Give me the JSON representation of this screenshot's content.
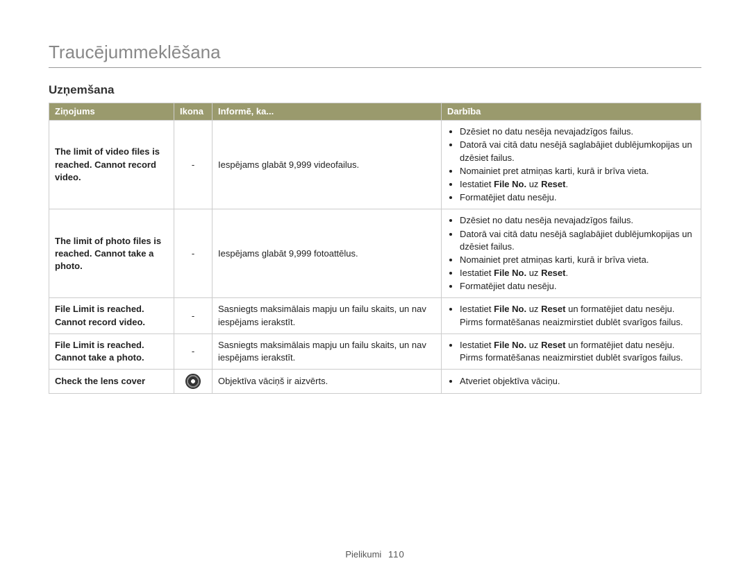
{
  "page": {
    "title": "Traucējummeklēšana",
    "subtitle": "Uzņemšana",
    "footer_label": "Pielikumi",
    "footer_page": "110"
  },
  "table": {
    "headers": {
      "message": "Ziņojums",
      "icon": "Ikona",
      "informs": "Informē, ka...",
      "action": "Darbība"
    },
    "rows": [
      {
        "message": "The limit of video files is reached. Cannot record video.",
        "icon": "-",
        "icon_type": "dash",
        "informs": "Iespējams glabāt 9,999 videofailus.",
        "actions": [
          {
            "text": "Dzēsiet no datu nesēja nevajadzīgos failus."
          },
          {
            "text": "Datorā vai citā datu nesējā saglabājiet dublējumkopijas un dzēsiet failus."
          },
          {
            "text": "Nomainiet pret atmiņas karti, kurā ir brīva vieta."
          },
          {
            "prefix": "Iestatiet ",
            "bold1": "File No.",
            "mid": " uz ",
            "bold2": "Reset",
            "suffix": "."
          },
          {
            "text": "Formatējiet datu nesēju."
          }
        ]
      },
      {
        "message": "The limit of photo files is reached. Cannot take a photo.",
        "icon": "-",
        "icon_type": "dash",
        "informs": "Iespējams glabāt 9,999 fotoattēlus.",
        "actions": [
          {
            "text": "Dzēsiet no datu nesēja nevajadzīgos failus."
          },
          {
            "text": "Datorā vai citā datu nesējā saglabājiet dublējumkopijas un dzēsiet failus."
          },
          {
            "text": "Nomainiet pret atmiņas karti, kurā ir brīva vieta."
          },
          {
            "prefix": "Iestatiet ",
            "bold1": "File No.",
            "mid": " uz ",
            "bold2": "Reset",
            "suffix": "."
          },
          {
            "text": "Formatējiet datu nesēju."
          }
        ]
      },
      {
        "message": "File Limit is reached. Cannot record video.",
        "icon": "-",
        "icon_type": "dash",
        "informs": "Sasniegts maksimālais mapju un failu skaits, un nav iespējams ierakstīt.",
        "actions": [
          {
            "prefix": "Iestatiet ",
            "bold1": "File No.",
            "mid": " uz ",
            "bold2": "Reset",
            "suffix": " un formatējiet datu nesēju.",
            "extra": "Pirms formatēšanas neaizmirstiet dublēt svarīgos failus."
          }
        ]
      },
      {
        "message": "File Limit is reached. Cannot take a photo.",
        "icon": "-",
        "icon_type": "dash",
        "informs": "Sasniegts maksimālais mapju un failu skaits, un nav iespējams ierakstīt.",
        "actions": [
          {
            "prefix": "Iestatiet ",
            "bold1": "File No.",
            "mid": " uz ",
            "bold2": "Reset",
            "suffix": " un formatējiet datu nesēju.",
            "extra": "Pirms formatēšanas neaizmirstiet dublēt svarīgos failus."
          }
        ]
      },
      {
        "message": "Check the lens cover",
        "icon": "lens",
        "icon_type": "lens",
        "informs": "Objektīva vāciņš ir aizvērts.",
        "actions": [
          {
            "text": "Atveriet objektīva vāciņu."
          }
        ]
      }
    ]
  }
}
